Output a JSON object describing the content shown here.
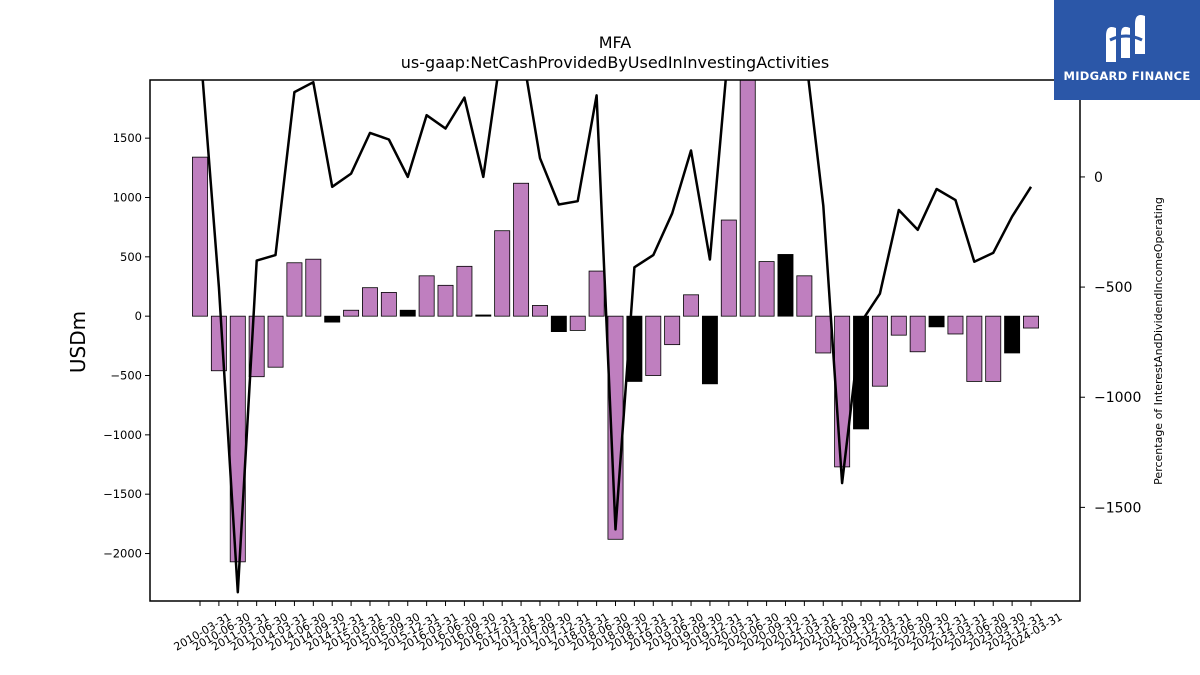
{
  "logo": {
    "text": "MIDGARD FINANCE"
  },
  "chart_data": {
    "type": "bar",
    "title": "MFA",
    "subtitle": "us-gaap:NetCashProvidedByUsedInInvestingActivities",
    "ylabel": "USDm",
    "y2label": "Percentage of InterestAndDividendIncomeOperating",
    "ylim": [
      -2400,
      1990
    ],
    "y2lim": [
      -1925,
      440
    ],
    "yticks": [
      -2000,
      -1500,
      -1000,
      -500,
      0,
      500,
      1000,
      1500
    ],
    "y2ticks": [
      -1500,
      -1000,
      -500,
      0
    ],
    "colors": {
      "positive_bar": "#bf7fbf",
      "negative_bar": "#000000",
      "line": "#000000"
    },
    "categories": [
      "2010-03-31",
      "2010-06-30",
      "2011-03-31",
      "2011-06-30",
      "2014-03-31",
      "2014-06-30",
      "2014-09-30",
      "2014-12-31",
      "2015-03-31",
      "2015-06-30",
      "2015-09-30",
      "2015-12-31",
      "2016-03-31",
      "2016-06-30",
      "2016-09-30",
      "2016-12-31",
      "2017-03-31",
      "2017-06-30",
      "2017-09-30",
      "2017-12-31",
      "2018-03-31",
      "2018-06-30",
      "2018-09-30",
      "2018-12-31",
      "2019-03-31",
      "2019-06-30",
      "2019-09-30",
      "2019-12-31",
      "2020-03-31",
      "2020-06-30",
      "2020-09-30",
      "2020-12-31",
      "2021-03-31",
      "2021-06-30",
      "2021-09-30",
      "2021-12-31",
      "2022-03-31",
      "2022-06-30",
      "2022-09-30",
      "2022-12-31",
      "2023-03-31",
      "2023-06-30",
      "2023-09-30",
      "2023-12-31",
      "2024-03-31"
    ],
    "values": [
      1340,
      -460,
      -2070,
      -510,
      -430,
      450,
      480,
      -50,
      50,
      240,
      200,
      50,
      340,
      260,
      420,
      10,
      720,
      1120,
      90,
      -130,
      -120,
      380,
      -1880,
      -550,
      -500,
      -240,
      180,
      -570,
      810,
      2050,
      460,
      520,
      340,
      -310,
      -1270,
      -950,
      -590,
      -160,
      -300,
      -90,
      -150,
      -550,
      -550,
      -310,
      -100
    ],
    "bar_colors": [
      "purple",
      "purple",
      "purple",
      "purple",
      "purple",
      "purple",
      "purple",
      "black",
      "purple",
      "purple",
      "purple",
      "black",
      "purple",
      "purple",
      "purple",
      "black",
      "purple",
      "purple",
      "purple",
      "black",
      "purple",
      "purple",
      "purple",
      "black",
      "purple",
      "purple",
      "purple",
      "black",
      "purple",
      "purple",
      "purple",
      "black",
      "purple",
      "purple",
      "purple",
      "black",
      "purple",
      "purple",
      "purple",
      "black",
      "purple",
      "purple",
      "purple",
      "black",
      "purple"
    ],
    "line_series": {
      "name": "",
      "values": [
        600,
        -500,
        -1885,
        -380,
        -355,
        385,
        430,
        -45,
        15,
        200,
        170,
        0,
        280,
        220,
        360,
        0,
        600,
        600,
        85,
        -125,
        -110,
        370,
        -1600,
        -410,
        -355,
        -165,
        120,
        -375,
        600,
        600,
        600,
        600,
        600,
        -130,
        -1390,
        -660,
        -530,
        -150,
        -240,
        -55,
        -105,
        -385,
        -345,
        -180,
        -45
      ]
    }
  }
}
